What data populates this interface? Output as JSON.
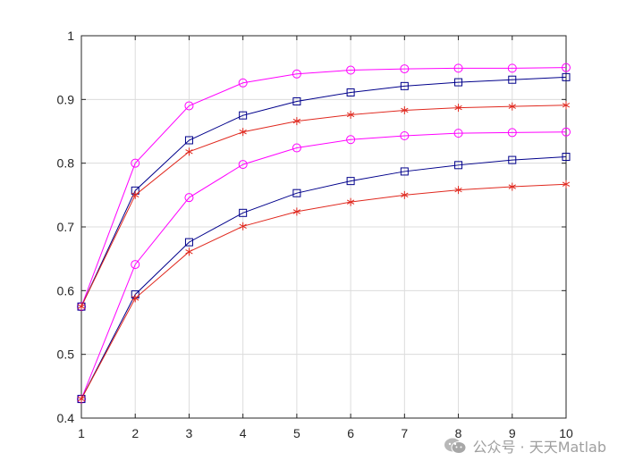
{
  "chart_data": {
    "type": "line",
    "x": [
      1,
      2,
      3,
      4,
      5,
      6,
      7,
      8,
      9,
      10
    ],
    "xlim": [
      1,
      10
    ],
    "ylim": [
      0.4,
      1.0
    ],
    "xticks": [
      "1",
      "2",
      "3",
      "4",
      "5",
      "6",
      "7",
      "8",
      "9",
      "10"
    ],
    "yticks": [
      "0.4",
      "0.5",
      "0.6",
      "0.7",
      "0.8",
      "0.9",
      "1"
    ],
    "title": "",
    "xlabel": "",
    "ylabel": "",
    "grid": true,
    "legend": "none",
    "series": [
      {
        "color": "#ff00ff",
        "marker": "circle",
        "values": [
          0.575,
          0.8,
          0.89,
          0.926,
          0.94,
          0.946,
          0.948,
          0.949,
          0.949,
          0.95
        ]
      },
      {
        "color": "#00008b",
        "marker": "square",
        "values": [
          0.575,
          0.757,
          0.836,
          0.875,
          0.897,
          0.911,
          0.921,
          0.927,
          0.931,
          0.935
        ]
      },
      {
        "color": "#e0281e",
        "marker": "asterisk",
        "values": [
          0.575,
          0.75,
          0.818,
          0.849,
          0.866,
          0.876,
          0.883,
          0.887,
          0.889,
          0.891
        ]
      },
      {
        "color": "#ff00ff",
        "marker": "circle",
        "values": [
          0.43,
          0.641,
          0.746,
          0.798,
          0.824,
          0.837,
          0.843,
          0.847,
          0.848,
          0.849
        ]
      },
      {
        "color": "#00008b",
        "marker": "square",
        "values": [
          0.43,
          0.594,
          0.676,
          0.722,
          0.753,
          0.772,
          0.787,
          0.797,
          0.805,
          0.81
        ]
      },
      {
        "color": "#e0281e",
        "marker": "asterisk",
        "values": [
          0.43,
          0.588,
          0.661,
          0.701,
          0.724,
          0.739,
          0.75,
          0.758,
          0.763,
          0.767
        ]
      }
    ]
  },
  "watermark": {
    "text": "公众号 · 天天Matlab",
    "icon": "wechat-icon"
  }
}
